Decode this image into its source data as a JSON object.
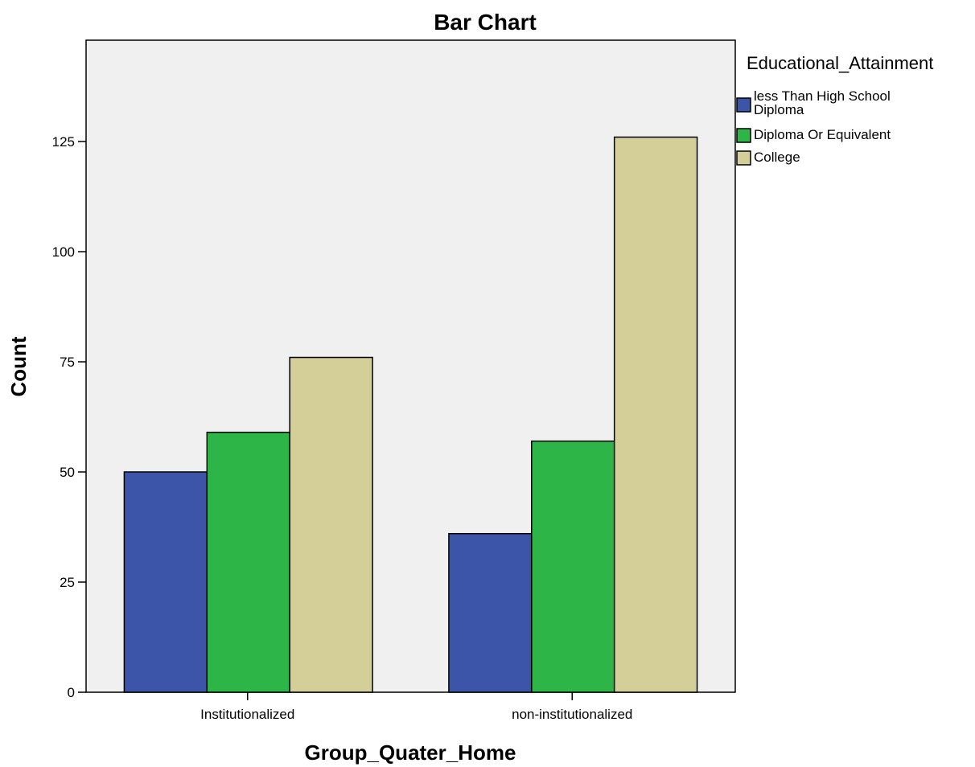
{
  "chart_data": {
    "type": "bar",
    "title": "Bar Chart",
    "xlabel": "Group_Quater_Home",
    "ylabel": "Count",
    "categories": [
      "Institutionalized",
      "non-institutionalized"
    ],
    "series": [
      {
        "name": "less Than High School Diploma",
        "label_lines": [
          "less Than High School",
          "Diploma"
        ],
        "values": [
          50,
          36
        ],
        "color": "#3d55a9"
      },
      {
        "name": "Diploma Or Equivalent",
        "label_lines": [
          "Diploma Or Equivalent"
        ],
        "values": [
          59,
          57
        ],
        "color": "#2db547"
      },
      {
        "name": "College",
        "label_lines": [
          "College"
        ],
        "values": [
          76,
          126
        ],
        "color": "#d4cf98"
      }
    ],
    "ylim": [
      0,
      148
    ],
    "yticks": [
      0,
      25,
      50,
      75,
      100,
      125
    ],
    "legend": {
      "title": "Educational_Attainment",
      "position": "right"
    },
    "grid": false,
    "plot_background": "#f0f0f0",
    "bar_outline": "#000000"
  }
}
